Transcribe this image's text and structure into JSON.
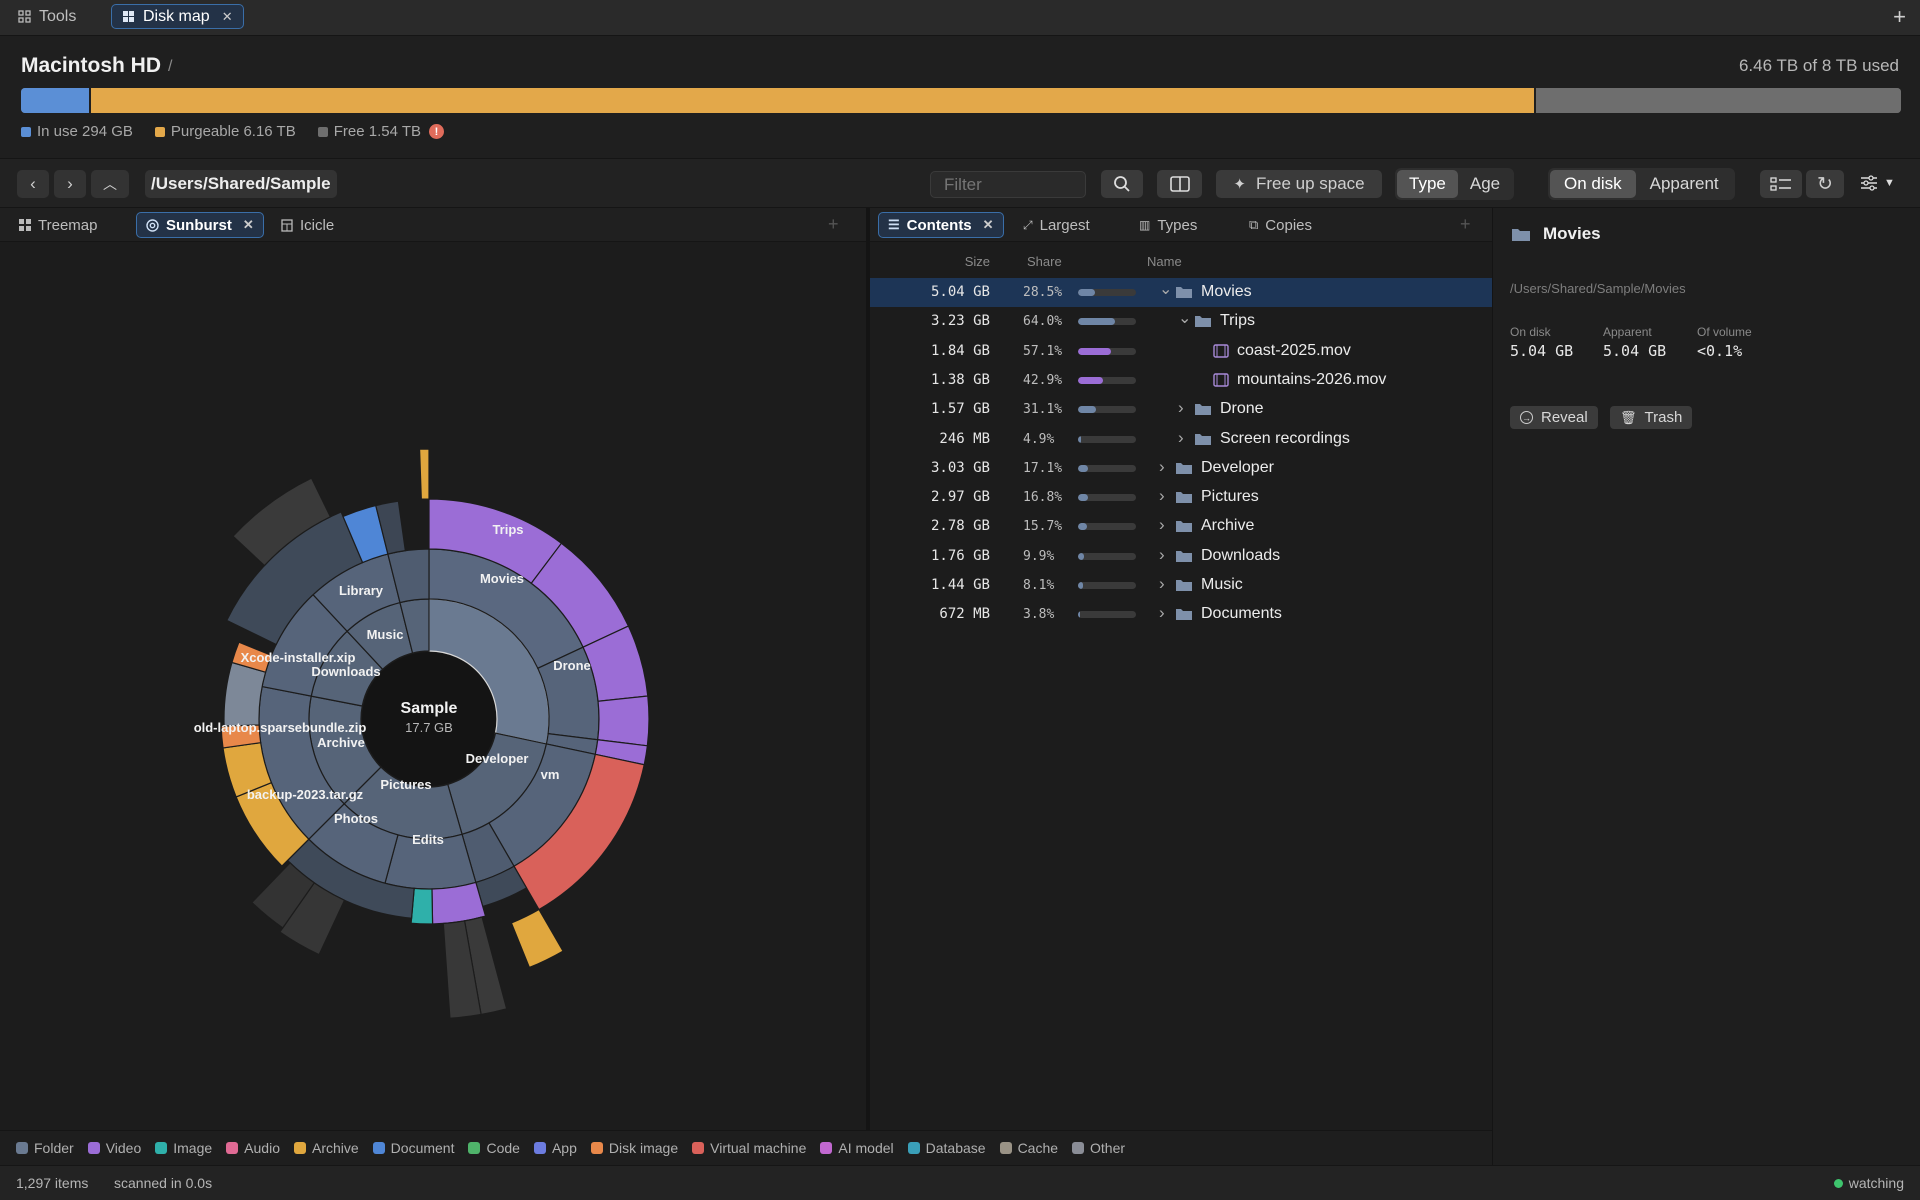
{
  "tabs": [
    {
      "label": "Tools"
    },
    {
      "label": "Disk map"
    }
  ],
  "header": {
    "volume_name": "Macintosh HD",
    "volume_path": "/",
    "used_summary": "6.46 TB of 8 TB used",
    "usage": {
      "in_use_fraction": 0.036,
      "purgeable_fraction": 0.77,
      "free_fraction": 0.194
    },
    "legend": {
      "in_use": "In use 294 GB",
      "purgeable": "Purgeable 6.16 TB",
      "free": "Free 1.54 TB"
    },
    "colors": {
      "in_use": "#5b8fd6",
      "purgeable": "#e3a84a",
      "free": "#6e6e6e",
      "warning": "#e06c5b"
    }
  },
  "toolbar": {
    "path": "/Users/Shared/Sample",
    "filter_placeholder": "Filter",
    "free_up": "Free up space",
    "color_by": {
      "options": [
        "Type",
        "Age"
      ],
      "selected": "Type"
    },
    "size_mode": {
      "options": [
        "On disk",
        "Apparent"
      ],
      "selected": "On disk"
    }
  },
  "viz_tabs": [
    {
      "label": "Treemap"
    },
    {
      "label": "Sunburst"
    },
    {
      "label": "Icicle"
    }
  ],
  "sunburst": {
    "center_title": "Sample",
    "center_size": "17.7 GB",
    "labels": {
      "movies": "Movies",
      "trips": "Trips",
      "drone": "Drone",
      "developer": "Developer",
      "vm": "vm",
      "pictures": "Pictures",
      "edits": "Edits",
      "photos": "Photos",
      "archive": "Archive",
      "downloads": "Downloads",
      "music": "Music",
      "library": "Library",
      "xcode": "Xcode-installer.xip",
      "laptop": "old-laptop.sparsebundle.zip",
      "backup": "backup-2023.tar.gz"
    }
  },
  "list_tabs": [
    {
      "label": "Contents"
    },
    {
      "label": "Largest"
    },
    {
      "label": "Types"
    },
    {
      "label": "Copies"
    }
  ],
  "columns": {
    "size": "Size",
    "share": "Share",
    "name": "Name"
  },
  "rows": [
    {
      "size": "5.04 GB",
      "share": "28.5%",
      "frac": 0.285,
      "name": "Movies",
      "kind": "folder",
      "depth": 0,
      "chev": "open",
      "sel": true
    },
    {
      "size": "3.23 GB",
      "share": "64.0%",
      "frac": 0.64,
      "name": "Trips",
      "kind": "folder",
      "depth": 1,
      "chev": "open"
    },
    {
      "size": "1.84 GB",
      "share": "57.1%",
      "frac": 0.571,
      "name": "coast-2025.mov",
      "kind": "video",
      "depth": 2,
      "chev": "none"
    },
    {
      "size": "1.38 GB",
      "share": "42.9%",
      "frac": 0.429,
      "name": "mountains-2026.mov",
      "kind": "video",
      "depth": 2,
      "chev": "none"
    },
    {
      "size": "1.57 GB",
      "share": "31.1%",
      "frac": 0.311,
      "name": "Drone",
      "kind": "folder",
      "depth": 1,
      "chev": "closed"
    },
    {
      "size": "246 MB",
      "share": "4.9%",
      "frac": 0.049,
      "name": "Screen recordings",
      "kind": "folder",
      "depth": 1,
      "chev": "closed"
    },
    {
      "size": "3.03 GB",
      "share": "17.1%",
      "frac": 0.171,
      "name": "Developer",
      "kind": "folder",
      "depth": 0,
      "chev": "closed"
    },
    {
      "size": "2.97 GB",
      "share": "16.8%",
      "frac": 0.168,
      "name": "Pictures",
      "kind": "folder",
      "depth": 0,
      "chev": "closed"
    },
    {
      "size": "2.78 GB",
      "share": "15.7%",
      "frac": 0.157,
      "name": "Archive",
      "kind": "folder",
      "depth": 0,
      "chev": "closed"
    },
    {
      "size": "1.76 GB",
      "share": "9.9%",
      "frac": 0.099,
      "name": "Downloads",
      "kind": "folder",
      "depth": 0,
      "chev": "closed"
    },
    {
      "size": "1.44 GB",
      "share": "8.1%",
      "frac": 0.081,
      "name": "Music",
      "kind": "folder",
      "depth": 0,
      "chev": "closed"
    },
    {
      "size": "672 MB",
      "share": "3.8%",
      "frac": 0.038,
      "name": "Documents",
      "kind": "folder",
      "depth": 0,
      "chev": "closed"
    }
  ],
  "details": {
    "title": "Movies",
    "path": "/Users/Shared/Sample/Movies",
    "on_disk_label": "On disk",
    "on_disk": "5.04 GB",
    "apparent_label": "Apparent",
    "apparent": "5.04 GB",
    "of_volume_label": "Of volume",
    "of_volume": "<0.1%",
    "reveal": "Reveal",
    "trash": "Trash"
  },
  "type_legend": [
    {
      "label": "Folder",
      "color": "#6a7a91"
    },
    {
      "label": "Video",
      "color": "#9b6dd6"
    },
    {
      "label": "Image",
      "color": "#2fb0aa"
    },
    {
      "label": "Audio",
      "color": "#e06a94"
    },
    {
      "label": "Archive",
      "color": "#e0a73e"
    },
    {
      "label": "Document",
      "color": "#4f86d6"
    },
    {
      "label": "Code",
      "color": "#4fb36a"
    },
    {
      "label": "App",
      "color": "#6c7ce0"
    },
    {
      "label": "Disk image",
      "color": "#e8884a"
    },
    {
      "label": "Virtual machine",
      "color": "#d9615a"
    },
    {
      "label": "AI model",
      "color": "#c168d0"
    },
    {
      "label": "Database",
      "color": "#3a9fb8"
    },
    {
      "label": "Cache",
      "color": "#9a9386"
    },
    {
      "label": "Other",
      "color": "#8a8d96"
    }
  ],
  "status": {
    "items": "1,297 items",
    "scanned": "scanned in 0.0s",
    "watching": "watching"
  }
}
